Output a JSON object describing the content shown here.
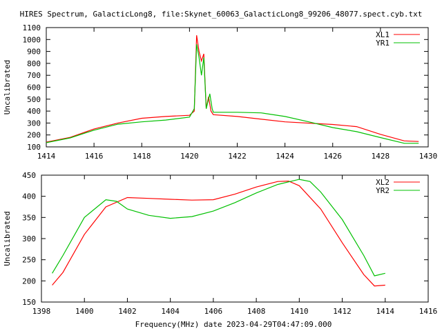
{
  "title": "HIRES Spectrum, GalacticLong8, file:Skynet_60063_GalacticLong8_99206_48077.spect.cyb.txt",
  "footer": "Frequency(MHz) date 2023-04-29T04:47:09.000",
  "colors": {
    "red": "#ff0000",
    "green": "#00c000"
  },
  "chart_data": [
    {
      "type": "line",
      "ylabel": "Uncalibrated",
      "xlim": [
        1414,
        1430
      ],
      "ylim": [
        100,
        1100
      ],
      "xticks": [
        1414,
        1416,
        1418,
        1420,
        1422,
        1424,
        1426,
        1428,
        1430
      ],
      "yticks": [
        100,
        200,
        300,
        400,
        500,
        600,
        700,
        800,
        900,
        1000,
        1100
      ],
      "legend": "top-right",
      "series": [
        {
          "name": "XL1",
          "color": "#ff0000",
          "x": [
            1414,
            1415,
            1416,
            1417,
            1418,
            1419,
            1420,
            1420.2,
            1420.3,
            1420.4,
            1420.5,
            1420.6,
            1420.7,
            1420.8,
            1420.9,
            1421,
            1422,
            1424,
            1426,
            1427,
            1428,
            1429,
            1429.6
          ],
          "y": [
            140,
            180,
            250,
            300,
            340,
            355,
            365,
            400,
            1035,
            900,
            820,
            880,
            420,
            520,
            400,
            370,
            355,
            310,
            288,
            270,
            205,
            150,
            145
          ]
        },
        {
          "name": "YR1",
          "color": "#00c000",
          "x": [
            1414,
            1415,
            1416,
            1417,
            1418,
            1419,
            1420,
            1420.2,
            1420.3,
            1420.4,
            1420.5,
            1420.6,
            1420.7,
            1420.8,
            1420.85,
            1420.95,
            1421,
            1422,
            1423,
            1424,
            1425,
            1426,
            1427,
            1428,
            1429,
            1429.6
          ],
          "y": [
            135,
            175,
            240,
            290,
            310,
            325,
            350,
            420,
            960,
            850,
            700,
            850,
            420,
            500,
            545,
            420,
            390,
            390,
            385,
            355,
            310,
            262,
            228,
            178,
            130,
            130
          ]
        }
      ]
    },
    {
      "type": "line",
      "ylabel": "Uncalibrated",
      "xlim": [
        1398,
        1416
      ],
      "ylim": [
        150,
        450
      ],
      "xticks": [
        1398,
        1400,
        1402,
        1404,
        1406,
        1408,
        1410,
        1412,
        1414,
        1416
      ],
      "yticks": [
        150,
        200,
        250,
        300,
        350,
        400,
        450
      ],
      "legend": "top-right",
      "series": [
        {
          "name": "XL2",
          "color": "#ff0000",
          "x": [
            1398.5,
            1399,
            1400,
            1401,
            1402,
            1403,
            1404,
            1405,
            1406,
            1407,
            1408,
            1409,
            1409.5,
            1410,
            1411,
            1412,
            1413,
            1413.5,
            1414
          ],
          "y": [
            190,
            220,
            310,
            375,
            397,
            395,
            393,
            391,
            392,
            405,
            422,
            435,
            436,
            425,
            370,
            290,
            215,
            188,
            190
          ]
        },
        {
          "name": "YR2",
          "color": "#00c000",
          "x": [
            1398.5,
            1399,
            1400,
            1401,
            1401.5,
            1402,
            1403,
            1404,
            1405,
            1406,
            1407,
            1408,
            1409,
            1410,
            1410.5,
            1411,
            1412,
            1413,
            1413.5,
            1414
          ],
          "y": [
            218,
            260,
            350,
            392,
            388,
            370,
            355,
            348,
            352,
            365,
            385,
            408,
            428,
            440,
            435,
            410,
            345,
            260,
            212,
            218
          ]
        }
      ]
    }
  ]
}
